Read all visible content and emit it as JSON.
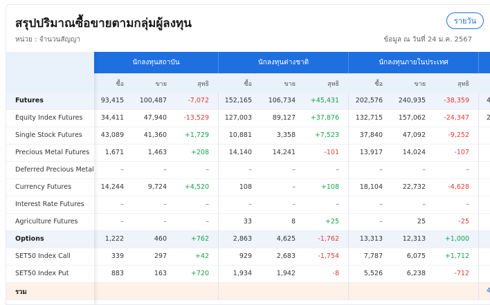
{
  "header": {
    "title": "สรุปปริมาณซื้อขายตามกลุ่มผู้ลงทุน",
    "unit": "หน่วย : จำนวนสัญญา",
    "as_of": "ข้อมูล ณ วันที่ 24 ม.ค. 2567",
    "period_button": "รายวัน"
  },
  "table": {
    "groups": [
      "นักลงทุนสถาบัน",
      "นักลงทุนต่างชาติ",
      "นักลงทุนภายในประเทศ"
    ],
    "subheaders": [
      "ซื้อ",
      "ขาย",
      "สุทธิ"
    ],
    "rows": [
      {
        "label": "Futures",
        "kind": "section",
        "values": [
          "93,415",
          "100,487",
          "-7,072",
          "152,165",
          "106,734",
          "+45,431",
          "202,576",
          "240,935",
          "-38,359"
        ],
        "edge": "4"
      },
      {
        "label": "Equity Index Futures",
        "kind": "item",
        "values": [
          "34,411",
          "47,940",
          "-13,529",
          "127,003",
          "89,127",
          "+37,876",
          "132,715",
          "157,062",
          "-24,347"
        ],
        "edge": "2"
      },
      {
        "label": "Single Stock Futures",
        "kind": "item",
        "values": [
          "43,089",
          "41,360",
          "+1,729",
          "10,881",
          "3,358",
          "+7,523",
          "37,840",
          "47,092",
          "-9,252"
        ],
        "edge": ""
      },
      {
        "label": "Precious Metal Futures",
        "kind": "item",
        "values": [
          "1,671",
          "1,463",
          "+208",
          "14,140",
          "14,241",
          "-101",
          "13,917",
          "14,024",
          "-107"
        ],
        "edge": ""
      },
      {
        "label": "Deferred Precious Metal",
        "kind": "item",
        "values": [
          "–",
          "–",
          "–",
          "–",
          "–",
          "–",
          "–",
          "–",
          "–"
        ],
        "edge": ""
      },
      {
        "label": "Currency Futures",
        "kind": "item",
        "values": [
          "14,244",
          "9,724",
          "+4,520",
          "108",
          "–",
          "+108",
          "18,104",
          "22,732",
          "-4,628"
        ],
        "edge": ""
      },
      {
        "label": "Interest Rate Futures",
        "kind": "item",
        "values": [
          "–",
          "–",
          "–",
          "–",
          "–",
          "–",
          "–",
          "–",
          "–"
        ],
        "edge": ""
      },
      {
        "label": "Agriculture Futures",
        "kind": "item",
        "values": [
          "–",
          "–",
          "–",
          "33",
          "8",
          "+25",
          "–",
          "25",
          "-25"
        ],
        "edge": ""
      },
      {
        "label": "Options",
        "kind": "section",
        "values": [
          "1,222",
          "460",
          "+762",
          "2,863",
          "4,625",
          "-1,762",
          "13,313",
          "12,313",
          "+1,000"
        ],
        "edge": ""
      },
      {
        "label": "SET50 Index Call",
        "kind": "item",
        "values": [
          "339",
          "297",
          "+42",
          "929",
          "2,683",
          "-1,754",
          "7,787",
          "6,075",
          "+1,712"
        ],
        "edge": ""
      },
      {
        "label": "SET50 Index Put",
        "kind": "item",
        "values": [
          "883",
          "163",
          "+720",
          "1,934",
          "1,942",
          "-8",
          "5,526",
          "6,238",
          "-712"
        ],
        "edge": ""
      },
      {
        "label": "รวม",
        "kind": "total",
        "values": [
          "",
          "",
          "",
          "",
          "",
          "",
          "",
          "",
          ""
        ],
        "edge": "4"
      }
    ]
  },
  "colors": {
    "accent": "#1e6fe0",
    "negative": "#e53935",
    "positive": "#14a34a"
  }
}
